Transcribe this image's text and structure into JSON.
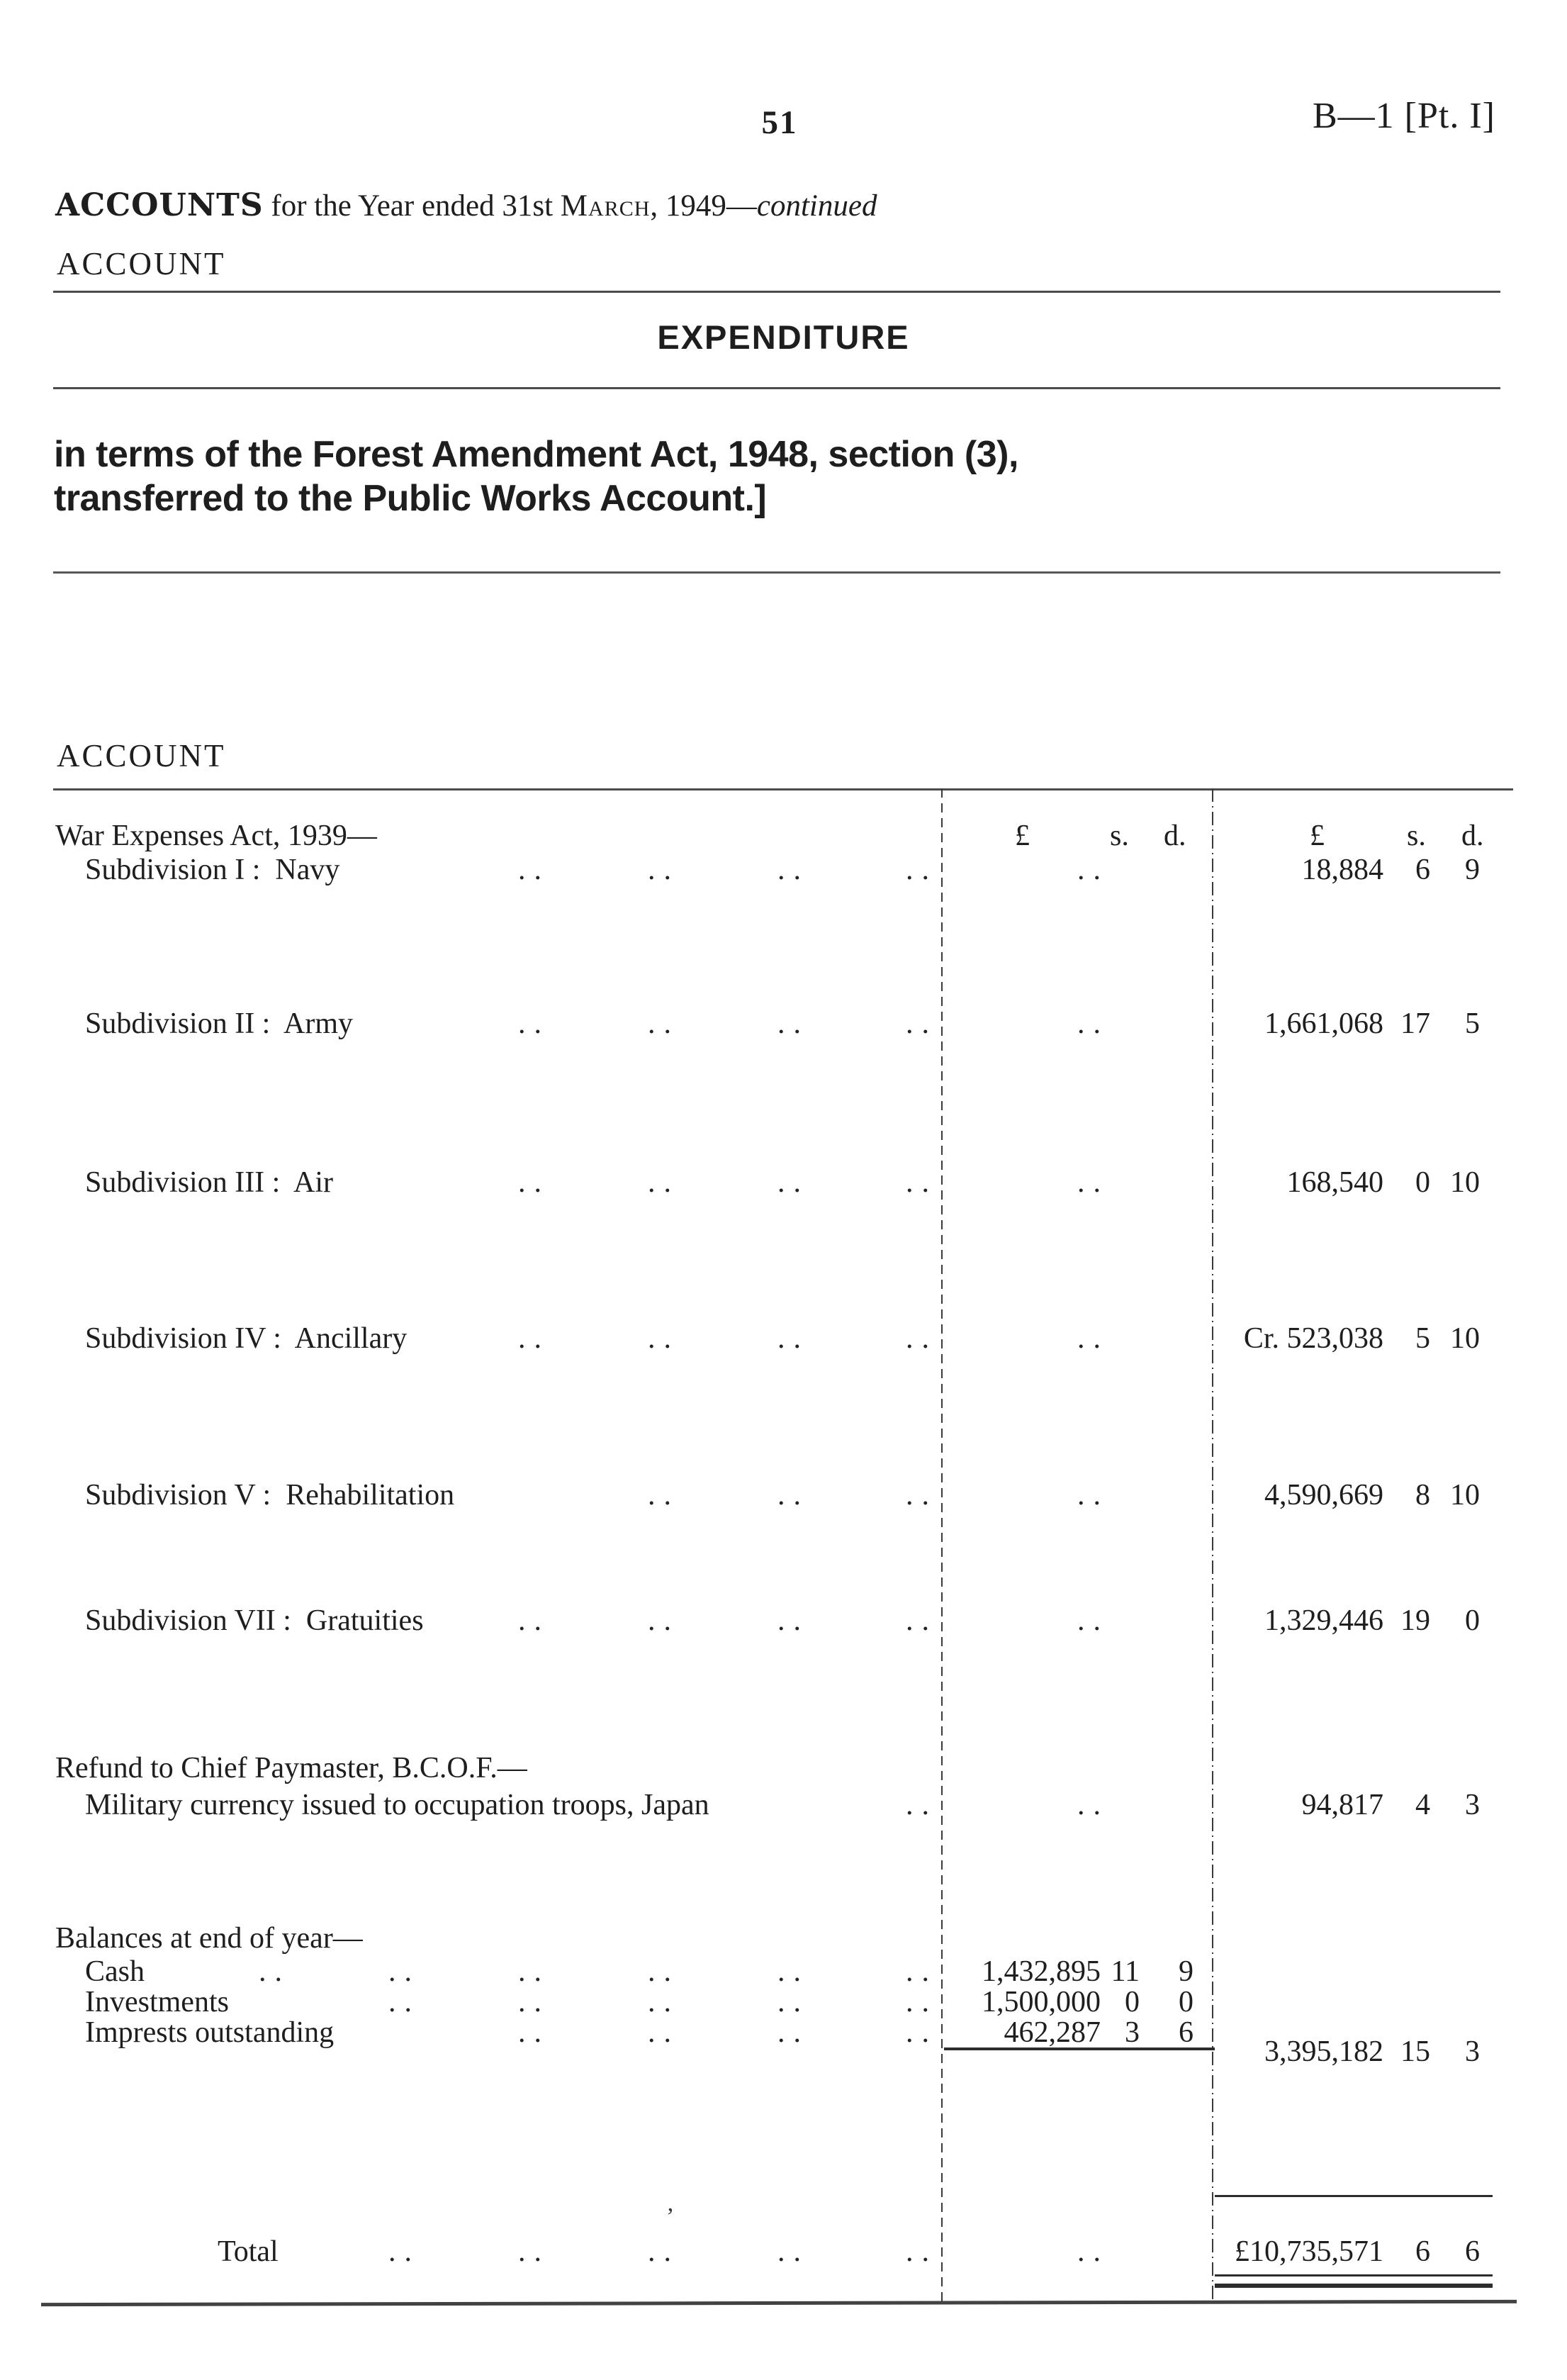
{
  "page": {
    "page_number": "51",
    "doc_ref": "B—1 [Pt. I]",
    "stray_mark": "’"
  },
  "heading": {
    "accounts_line": [
      {
        "text": "ACCOUNTS",
        "style": "bold"
      },
      {
        "text": " for the Year ended 31st ",
        "style": "plain"
      },
      {
        "text": "March",
        "style": "smallcaps"
      },
      {
        "text": ", 1949—",
        "style": "plain"
      },
      {
        "text": "continued",
        "style": "italic"
      }
    ],
    "account_label_1": "ACCOUNT",
    "expenditure_title": "EXPENDITURE",
    "note_line_1": "in terms of the Forest Amendment Act, 1948, section (3),",
    "note_line_2": "transferred to the Public Works Account.]",
    "account_label_2": "ACCOUNT"
  },
  "table": {
    "leader_glyph": "..",
    "col_headers": {
      "pound": "£",
      "shillings": "s.",
      "pence": "d."
    },
    "rows": [
      {
        "name": "war-expenses-header-row",
        "label": "War Expenses Act, 1939—",
        "indent": 0,
        "headers": true
      },
      {
        "name": "row-subdivision-navy",
        "label": "Subdivision I :  Navy",
        "indent": 1,
        "leaders": [
          3,
          4,
          5,
          6
        ],
        "mid_dots": true,
        "right": {
          "l": "18,884",
          "s": "6",
          "d": "9"
        }
      },
      {
        "name": "row-subdivision-army",
        "label": "Subdivision II :  Army",
        "indent": 1,
        "leaders": [
          3,
          4,
          5,
          6
        ],
        "mid_dots": true,
        "right": {
          "l": "1,661,068",
          "s": "17",
          "d": "5"
        }
      },
      {
        "name": "row-subdivision-air",
        "label": "Subdivision III :  Air",
        "indent": 1,
        "leaders": [
          3,
          4,
          5,
          6
        ],
        "mid_dots": true,
        "right": {
          "l": "168,540",
          "s": "0",
          "d": "10"
        }
      },
      {
        "name": "row-subdivision-ancillary",
        "label": "Subdivision IV :  Ancillary",
        "indent": 1,
        "leaders": [
          3,
          4,
          5,
          6
        ],
        "mid_dots": true,
        "right": {
          "l": "Cr. 523,038",
          "s": "5",
          "d": "10"
        }
      },
      {
        "name": "row-subdivision-rehabilitation",
        "label": "Subdivision V :  Rehabilitation",
        "indent": 1,
        "leaders": [
          4,
          5,
          6
        ],
        "mid_dots": true,
        "right": {
          "l": "4,590,669",
          "s": "8",
          "d": "10"
        }
      },
      {
        "name": "row-subdivision-gratuities",
        "label": "Subdivision VII :  Gratuities",
        "indent": 1,
        "leaders": [
          3,
          4,
          5,
          6
        ],
        "mid_dots": true,
        "right": {
          "l": "1,329,446",
          "s": "19",
          "d": "0"
        }
      },
      {
        "name": "row-refund-heading",
        "label": "Refund to Chief Paymaster, B.C.O.F.—",
        "indent": 0
      },
      {
        "name": "row-military-currency",
        "label": "Military currency issued to occupation troops, Japan",
        "indent": 1,
        "leaders": [
          6
        ],
        "mid_dots": true,
        "right": {
          "l": "94,817",
          "s": "4",
          "d": "3"
        }
      },
      {
        "name": "row-balances-heading",
        "label": "Balances at end of year—",
        "indent": 0
      },
      {
        "name": "row-balances-cash",
        "label": "Cash",
        "indent": 1,
        "leaders": [
          1,
          2,
          3,
          4,
          5,
          6
        ],
        "mid": {
          "l": "1,432,895",
          "s": "11",
          "d": "9"
        }
      },
      {
        "name": "row-balances-investments",
        "label": "Investments",
        "indent": 1,
        "leaders": [
          2,
          3,
          4,
          5,
          6
        ],
        "mid": {
          "l": "1,500,000",
          "s": "0",
          "d": "0"
        }
      },
      {
        "name": "row-balances-imprests",
        "label": "Imprests outstanding",
        "indent": 1,
        "leaders": [
          3,
          4,
          5,
          6
        ],
        "mid": {
          "l": "462,287",
          "s": "3",
          "d": "6"
        }
      },
      {
        "name": "row-balances-subtotal",
        "right": {
          "l": "3,395,182",
          "s": "15",
          "d": "3"
        }
      },
      {
        "name": "row-total",
        "label": "Total",
        "indent": 2,
        "leaders": [
          2,
          3,
          4,
          5,
          6
        ],
        "mid_dots": true,
        "right": {
          "l": "£10,735,571",
          "s": "6",
          "d": "6"
        }
      }
    ]
  }
}
